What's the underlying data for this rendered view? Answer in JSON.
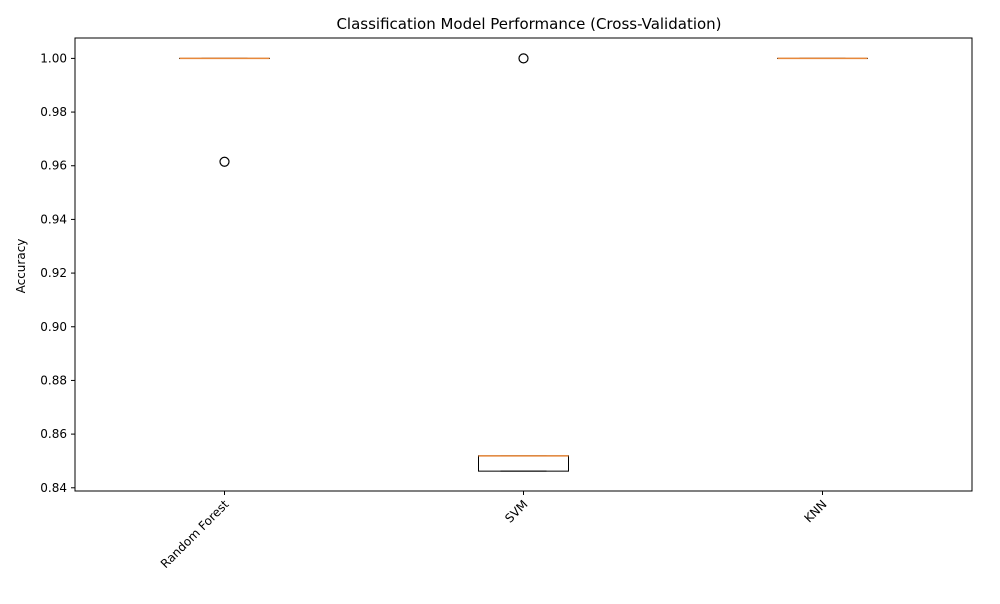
{
  "chart_data": {
    "type": "box",
    "title": "Classification Model Performance (Cross-Validation)",
    "xlabel": "",
    "ylabel": "Accuracy",
    "ylim": [
      0.8388,
      1.0076
    ],
    "y_ticks": [
      0.84,
      0.86,
      0.88,
      0.9,
      0.92,
      0.94,
      0.96,
      0.98,
      1.0
    ],
    "y_tick_labels": [
      "0.84",
      "0.86",
      "0.88",
      "0.90",
      "0.92",
      "0.94",
      "0.96",
      "0.98",
      "1.00"
    ],
    "x_tick_rotation_deg": 45,
    "grid": false,
    "legend": "none",
    "colors": {
      "box": "#000000",
      "median": "#e8883a",
      "axis": "#000000"
    },
    "categories": [
      "Random Forest",
      "SVM",
      "KNN"
    ],
    "boxes": [
      {
        "name": "Random Forest",
        "whisker_low": 1.0,
        "q1": 1.0,
        "median": 1.0,
        "q3": 1.0,
        "whisker_high": 1.0,
        "outliers": [
          0.9615
        ]
      },
      {
        "name": "SVM",
        "whisker_low": 0.8462,
        "q1": 0.8462,
        "median": 0.8519,
        "q3": 0.8519,
        "whisker_high": 0.8519,
        "outliers": [
          1.0
        ]
      },
      {
        "name": "KNN",
        "whisker_low": 1.0,
        "q1": 1.0,
        "median": 1.0,
        "q3": 1.0,
        "whisker_high": 1.0,
        "outliers": []
      }
    ]
  }
}
